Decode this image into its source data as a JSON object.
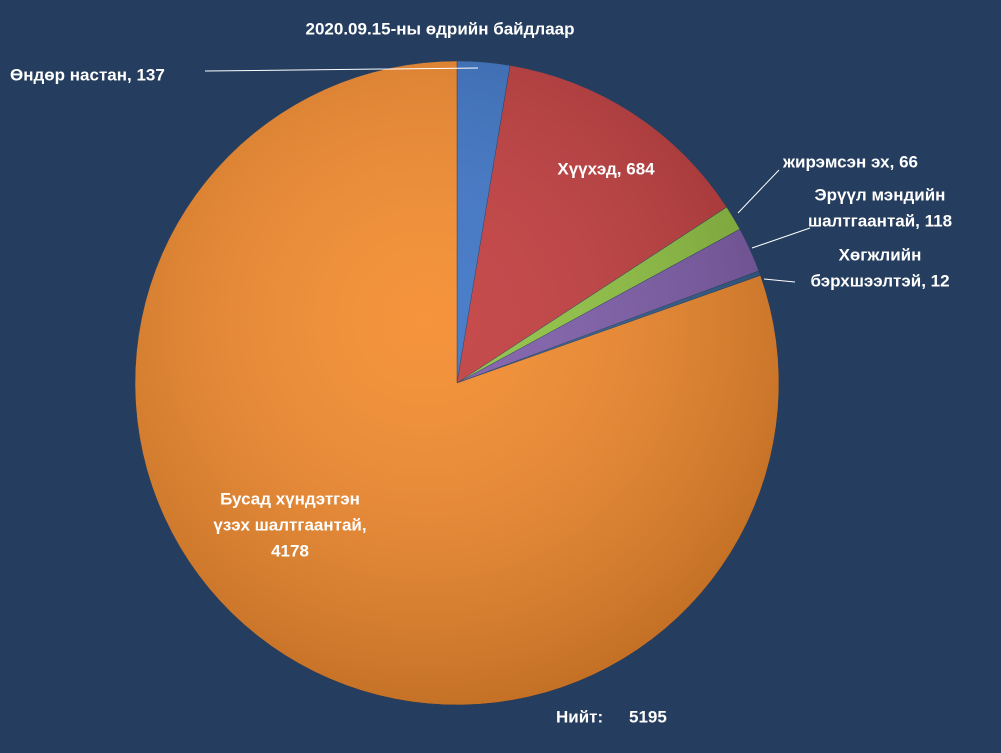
{
  "chart_data": {
    "type": "pie",
    "title": "2020.09.15-ны өдрийн байдлаар",
    "values": [
      137,
      684,
      66,
      118,
      12,
      4178
    ],
    "value_labels": [
      [
        "Өндөр настан, 137"
      ],
      [
        "Хүүхэд, 684"
      ],
      [
        "жирэмсэн эх, 66"
      ],
      [
        "Эрүүл мэндийн",
        "шалтгаантай, 118"
      ],
      [
        "Хөгжлийн",
        "бэрхшээлтэй, 12"
      ],
      [
        "Бусад хүндэтгэн",
        "үзэх шалтгаантай,",
        "4178"
      ]
    ],
    "colors": [
      "#3b73c6",
      "#c23b3c",
      "#8fc23f",
      "#7d5ba9",
      "#2f5a8a",
      "#f48a2b"
    ],
    "total_label": "Нийт:",
    "total": 5195
  }
}
